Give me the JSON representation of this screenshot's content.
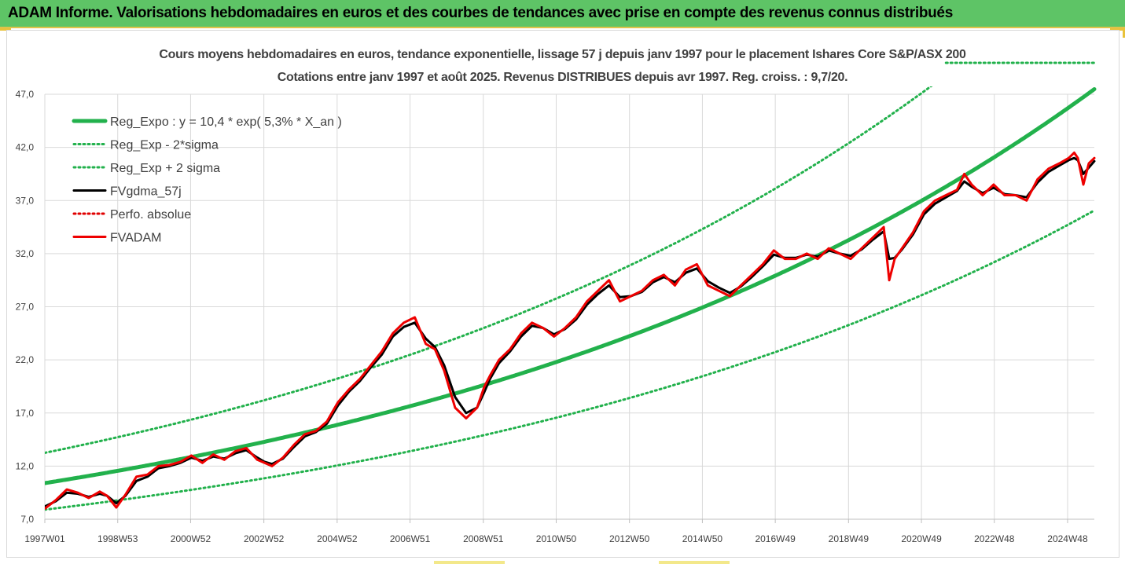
{
  "header": {
    "title": "ADAM Informe. Valorisations hebdomadaires en euros et des courbes de tendances avec prise en compte des revenus connus distribués"
  },
  "chart_data": {
    "type": "line",
    "title": "Cours moyens hebdomadaires en euros, tendance exponentielle, lissage 57 j depuis janv 1997 pour le placement Ishares Core S&P/ASX 200",
    "subtitle": "Cotations entre janv 1997 et août 2025. Revenus DISTRIBUES depuis avr 1997. Reg. croiss. : 9,7/20.",
    "xlabel": "",
    "ylabel": "",
    "ylim": [
      7.0,
      47.0
    ],
    "y_ticks": [
      "7,0",
      "12,0",
      "17,0",
      "22,0",
      "27,0",
      "32,0",
      "37,0",
      "42,0",
      "47,0"
    ],
    "x_range": [
      1997.0,
      2025.65
    ],
    "x_ticks": [
      {
        "label": "1997W01",
        "x": 1997.0
      },
      {
        "label": "1998W53",
        "x": 1998.99
      },
      {
        "label": "2000W52",
        "x": 2000.98
      },
      {
        "label": "2002W52",
        "x": 2002.98
      },
      {
        "label": "2004W52",
        "x": 2004.98
      },
      {
        "label": "2006W51",
        "x": 2006.97
      },
      {
        "label": "2008W51",
        "x": 2008.97
      },
      {
        "label": "2010W50",
        "x": 2010.96
      },
      {
        "label": "2012W50",
        "x": 2012.96
      },
      {
        "label": "2014W50",
        "x": 2014.95
      },
      {
        "label": "2016W49",
        "x": 2016.94
      },
      {
        "label": "2018W49",
        "x": 2018.94
      },
      {
        "label": "2020W49",
        "x": 2020.93
      },
      {
        "label": "2022W48",
        "x": 2022.92
      },
      {
        "label": "2024W48",
        "x": 2024.92
      }
    ],
    "grid": true,
    "legend_position": "top-left",
    "series": [
      {
        "name": "Reg_Expo : y = 10,4 * exp( 5,3% *  X_an )",
        "kind": "exp",
        "a": 10.4,
        "r": 0.053,
        "color": "#22b14c",
        "style": "solid",
        "width": 5
      },
      {
        "name": "Reg_Exp - 2*sigma",
        "kind": "exp",
        "a": 7.9,
        "r": 0.053,
        "color": "#22b14c",
        "style": "dotted",
        "width": 3
      },
      {
        "name": "Reg_Exp + 2 sigma",
        "kind": "exp",
        "a": 13.25,
        "r": 0.053,
        "color": "#22b14c",
        "style": "dotted",
        "width": 3
      },
      {
        "name": "FVgdma_57j",
        "kind": "data",
        "color": "#000000",
        "style": "solid",
        "width": 3
      },
      {
        "name": "Perfo. absolue",
        "kind": "none",
        "color": "#e00000",
        "style": "dotted",
        "width": 2
      },
      {
        "name": "FVADAM",
        "kind": "data",
        "color": "#ee0000",
        "style": "solid",
        "width": 3
      },
      {
        "name": "",
        "kind": "flat",
        "value": 51.8,
        "color": "#22b14c",
        "style": "dotted",
        "width": 3,
        "x_start": 2021.6
      }
    ],
    "x": [
      1997.0,
      1997.3,
      1997.6,
      1997.9,
      1998.2,
      1998.5,
      1998.7,
      1998.95,
      1999.2,
      1999.5,
      1999.8,
      2000.1,
      2000.4,
      2000.7,
      2001.0,
      2001.3,
      2001.6,
      2001.9,
      2002.2,
      2002.5,
      2002.8,
      2003.0,
      2003.2,
      2003.5,
      2003.8,
      2004.1,
      2004.4,
      2004.7,
      2005.0,
      2005.3,
      2005.6,
      2005.9,
      2006.2,
      2006.5,
      2006.8,
      2007.1,
      2007.4,
      2007.65,
      2007.9,
      2008.2,
      2008.5,
      2008.8,
      2009.0,
      2009.15,
      2009.4,
      2009.7,
      2010.0,
      2010.3,
      2010.6,
      2010.9,
      2011.2,
      2011.5,
      2011.8,
      2012.1,
      2012.4,
      2012.7,
      2013.0,
      2013.3,
      2013.6,
      2013.9,
      2014.2,
      2014.5,
      2014.8,
      2015.1,
      2015.4,
      2015.7,
      2016.0,
      2016.3,
      2016.6,
      2016.9,
      2017.2,
      2017.5,
      2017.8,
      2018.1,
      2018.4,
      2018.7,
      2019.0,
      2019.3,
      2019.6,
      2019.9,
      2020.05,
      2020.2,
      2020.4,
      2020.7,
      2021.0,
      2021.3,
      2021.6,
      2021.9,
      2022.1,
      2022.3,
      2022.6,
      2022.9,
      2023.2,
      2023.5,
      2023.8,
      2024.1,
      2024.4,
      2024.7,
      2024.95,
      2025.1,
      2025.2,
      2025.35,
      2025.5,
      2025.65
    ],
    "values_fvadam": [
      8.0,
      8.8,
      9.8,
      9.5,
      9.0,
      9.6,
      9.2,
      8.1,
      9.3,
      11.0,
      11.2,
      12.0,
      12.1,
      12.4,
      13.0,
      12.3,
      13.1,
      12.6,
      13.4,
      13.7,
      12.6,
      12.3,
      12.0,
      12.8,
      14.0,
      15.0,
      15.3,
      16.2,
      18.0,
      19.2,
      20.2,
      21.5,
      22.8,
      24.5,
      25.5,
      26.0,
      23.5,
      23.0,
      21.0,
      17.5,
      16.5,
      17.5,
      19.5,
      20.5,
      22.0,
      23.0,
      24.5,
      25.5,
      25.0,
      24.2,
      25.0,
      26.0,
      27.5,
      28.5,
      29.5,
      27.5,
      28.0,
      28.5,
      29.5,
      30.0,
      29.0,
      30.5,
      31.0,
      29.0,
      28.5,
      28.0,
      29.0,
      30.0,
      31.0,
      32.3,
      31.5,
      31.5,
      32.0,
      31.5,
      32.5,
      32.0,
      31.5,
      32.5,
      33.5,
      34.5,
      29.5,
      31.5,
      32.5,
      34.0,
      36.0,
      37.0,
      37.5,
      38.0,
      39.5,
      38.5,
      37.5,
      38.5,
      37.5,
      37.5,
      37.0,
      39.0,
      40.0,
      40.5,
      41.0,
      41.5,
      41.0,
      38.5,
      40.5,
      41.0
    ],
    "values_gdma": [
      8.2,
      8.7,
      9.5,
      9.4,
      9.1,
      9.4,
      9.2,
      8.5,
      9.2,
      10.6,
      11.0,
      11.8,
      12.0,
      12.3,
      12.8,
      12.5,
      12.9,
      12.7,
      13.2,
      13.5,
      12.8,
      12.4,
      12.2,
      12.7,
      13.8,
      14.8,
      15.2,
      16.0,
      17.7,
      19.0,
      20.0,
      21.3,
      22.5,
      24.2,
      25.1,
      25.5,
      24.0,
      23.2,
      21.5,
      18.5,
      17.0,
      17.5,
      19.0,
      20.2,
      21.7,
      22.8,
      24.2,
      25.2,
      25.0,
      24.4,
      24.9,
      25.8,
      27.2,
      28.2,
      29.0,
      27.9,
      28.0,
      28.4,
      29.3,
      29.8,
      29.3,
      30.2,
      30.6,
      29.4,
      28.8,
      28.3,
      28.9,
      29.8,
      30.8,
      31.9,
      31.6,
      31.6,
      31.9,
      31.7,
      32.3,
      32.0,
      31.8,
      32.4,
      33.3,
      34.1,
      31.5,
      31.6,
      32.4,
      33.8,
      35.7,
      36.7,
      37.3,
      37.9,
      38.8,
      38.3,
      37.7,
      38.2,
      37.6,
      37.5,
      37.3,
      38.7,
      39.7,
      40.3,
      40.8,
      41.0,
      40.8,
      39.5,
      40.1,
      40.7
    ]
  }
}
